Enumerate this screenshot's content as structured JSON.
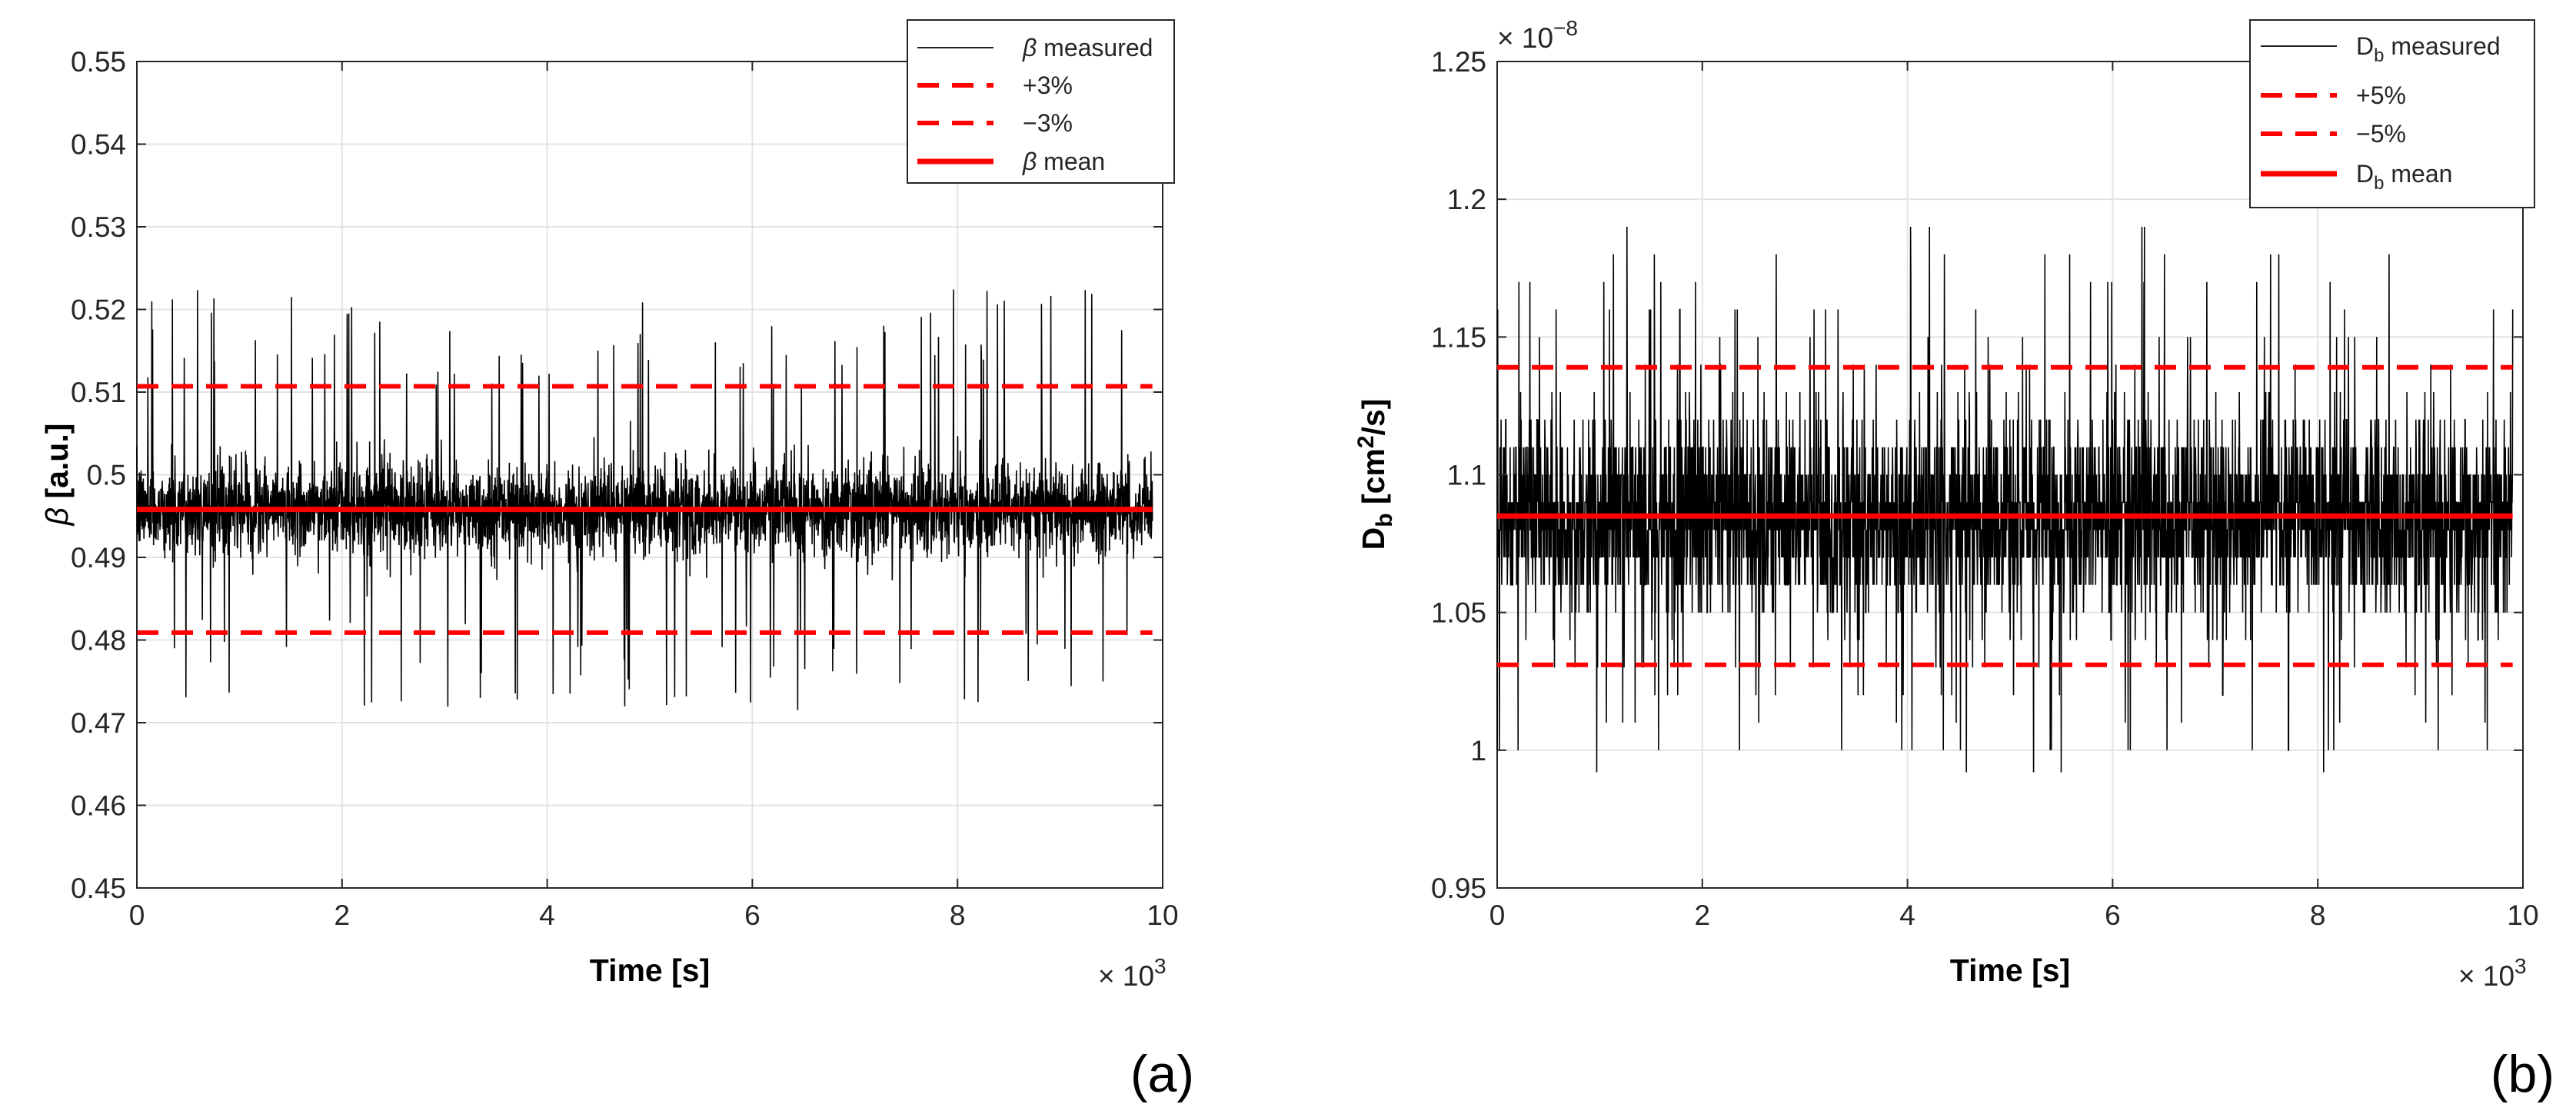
{
  "colors": {
    "signal": "#000000",
    "tolerance": "#ff0000",
    "mean": "#ff0000",
    "grid": "#e3e3e3",
    "axes": "#262626"
  },
  "chart_data": [
    {
      "type": "line",
      "panel_label": "(a)",
      "xlabel": "Time [s]",
      "ylabel": "β [a.u.]",
      "ylabel_parts": {
        "symbol": "β",
        "unit": " [a.u.]"
      },
      "xlim": [
        0,
        10
      ],
      "ylim": [
        0.45,
        0.55
      ],
      "x_multiplier": {
        "base": "× 10",
        "exp": "3"
      },
      "y_multiplier": null,
      "xticks": [
        "0",
        "2",
        "4",
        "6",
        "8",
        "10"
      ],
      "yticks": [
        "0.45",
        "0.46",
        "0.47",
        "0.48",
        "0.49",
        "0.5",
        "0.51",
        "0.52",
        "0.53",
        "0.54",
        "0.55"
      ],
      "ytick_values": [
        0.45,
        0.46,
        0.47,
        0.48,
        0.49,
        0.5,
        0.51,
        0.52,
        0.53,
        0.54,
        0.55
      ],
      "grid": true,
      "legend_position": "top-right",
      "legend": [
        {
          "sym": "β",
          "label": " measured",
          "style": "thin-solid"
        },
        {
          "label": "+3%",
          "style": "dashed"
        },
        {
          "label": "−3%",
          "style": "dashed"
        },
        {
          "sym": "β",
          "label": " mean",
          "style": "thick-solid"
        }
      ],
      "series": [
        {
          "name": "β measured",
          "x_range": [
            0,
            9.9
          ],
          "mean": 0.4958,
          "core_half_width": 0.0065,
          "spike_max": 0.5225,
          "spike_min": 0.4715,
          "note": "dense noisy signal, ~9900 samples"
        },
        {
          "name": "+3%",
          "x": [
            0,
            9.9
          ],
          "y": [
            0.5107,
            0.5107
          ]
        },
        {
          "name": "−3%",
          "x": [
            0,
            9.9
          ],
          "y": [
            0.4809,
            0.4809
          ]
        },
        {
          "name": "β mean",
          "x": [
            0,
            9.9
          ],
          "y": [
            0.4958,
            0.4958
          ]
        }
      ]
    },
    {
      "type": "line",
      "panel_label": "(b)",
      "xlabel": "Time [s]",
      "ylabel": "Db [cm2/s]",
      "ylabel_parts": {
        "main": "D",
        "sub": "b",
        "unit_a": " [cm",
        "sup": "2",
        "unit_b": "/s]"
      },
      "xlim": [
        0,
        10
      ],
      "ylim": [
        0.95,
        1.25
      ],
      "x_multiplier": {
        "base": "× 10",
        "exp": "3"
      },
      "y_multiplier": {
        "base": "× 10",
        "exp": "−8"
      },
      "xticks": [
        "0",
        "2",
        "4",
        "6",
        "8",
        "10"
      ],
      "yticks": [
        "0.95",
        "1",
        "1.05",
        "1.1",
        "1.15",
        "1.2",
        "1.25"
      ],
      "ytick_values": [
        0.95,
        1.0,
        1.05,
        1.1,
        1.15,
        1.2,
        1.25
      ],
      "grid": true,
      "legend_position": "top-right",
      "legend": [
        {
          "main": "D",
          "sub": "b",
          "label": " measured",
          "style": "thin-solid"
        },
        {
          "label": "+5%",
          "style": "dashed"
        },
        {
          "label": "−5%",
          "style": "dashed"
        },
        {
          "main": "D",
          "sub": "b",
          "label": " mean",
          "style": "thick-solid"
        }
      ],
      "series": [
        {
          "name": "Db measured",
          "x_range": [
            0,
            9.9
          ],
          "mean": 1.085,
          "core_half_width": 0.045,
          "spike_max": 1.19,
          "spike_min": 0.992,
          "quantization": 0.01,
          "note": "dense quantized noisy signal, ~9900 samples"
        },
        {
          "name": "+5%",
          "x": [
            0,
            9.9
          ],
          "y": [
            1.139,
            1.139
          ]
        },
        {
          "name": "−5%",
          "x": [
            0,
            9.9
          ],
          "y": [
            1.031,
            1.031
          ]
        },
        {
          "name": "Db mean",
          "x": [
            0,
            9.9
          ],
          "y": [
            1.085,
            1.085
          ]
        }
      ]
    }
  ]
}
